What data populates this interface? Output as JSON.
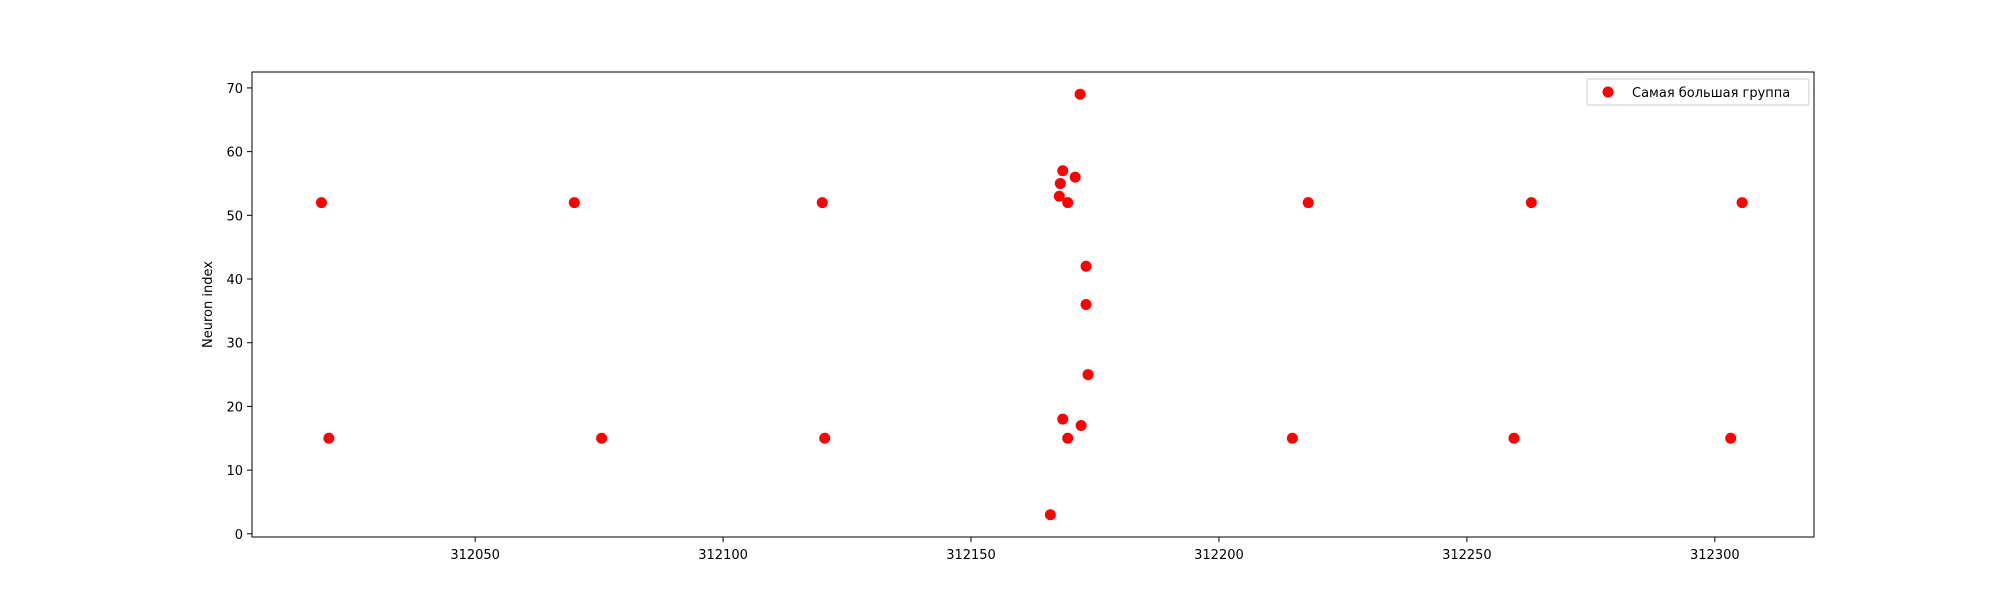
{
  "chart_data": {
    "type": "scatter",
    "title": "",
    "xlabel": "",
    "ylabel": "Neuron index",
    "xlim": [
      312005,
      312320
    ],
    "ylim": [
      -0.5,
      72.5
    ],
    "xticks": [
      312050,
      312100,
      312150,
      312200,
      312250,
      312300
    ],
    "xtick_labels": [
      "312050",
      "312100",
      "312150",
      "312200",
      "312250",
      "312300"
    ],
    "yticks": [
      0,
      10,
      20,
      30,
      40,
      50,
      60,
      70
    ],
    "ytick_labels": [
      "0",
      "10",
      "20",
      "30",
      "40",
      "50",
      "60",
      "70"
    ],
    "grid": false,
    "legend_position": "top-right",
    "series": [
      {
        "name": "Самая большая группа",
        "color": "#ff0000",
        "marker": "circle",
        "x": [
          312019,
          312020.5,
          312070,
          312075.5,
          312120,
          312120.5,
          312166,
          312167.8,
          312168,
          312168.5,
          312168.5,
          312169.5,
          312169.5,
          312171,
          312172,
          312172.2,
          312173.2,
          312173.2,
          312173.6,
          312214.8,
          312218,
          312259.5,
          312263,
          312303.2,
          312305.5
        ],
        "y": [
          52,
          15,
          52,
          15,
          52,
          15,
          3,
          53,
          55,
          57,
          18,
          52,
          15,
          56,
          69,
          17,
          42,
          36,
          25,
          15,
          52,
          15,
          52,
          15,
          52
        ]
      }
    ]
  }
}
